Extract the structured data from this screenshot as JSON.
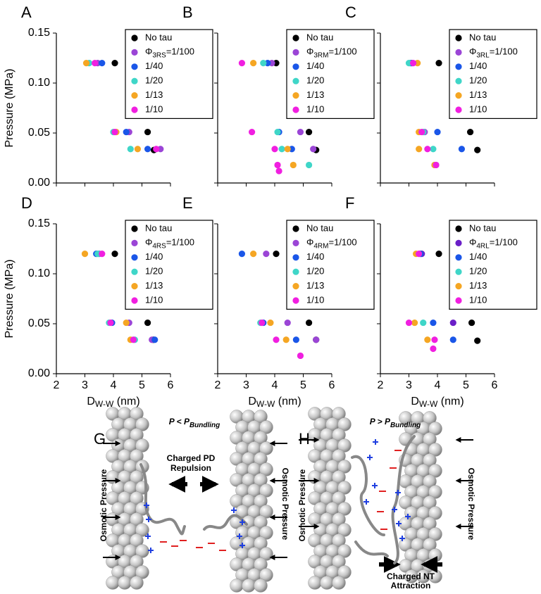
{
  "chart_data": [
    {
      "type": "scatter",
      "panel": "A",
      "ylabel": "Pressure (MPa)",
      "xlim": [
        2,
        6
      ],
      "ylim": [
        0,
        0.15
      ],
      "xticks": [
        2,
        3,
        4,
        5,
        6
      ],
      "xtick_labels": false,
      "yticks": [
        {
          "value": 0,
          "label": "0.00"
        },
        {
          "value": 0.05,
          "label": "0.05"
        },
        {
          "value": 0.1,
          "label": "0.10"
        },
        {
          "value": 0.15,
          "label": "0.15"
        }
      ],
      "ytick_labels": true,
      "legend": "upper right",
      "series": [
        {
          "name": "No tau",
          "color": "#000000",
          "x": [
            4.05,
            5.2,
            5.42
          ],
          "values": [
            0.12,
            0.051,
            0.033
          ]
        },
        {
          "name": "Φ3RS=1/100",
          "color": "#9b45d6",
          "x": [
            3.45,
            4.55,
            5.65
          ],
          "values": [
            0.12,
            0.051,
            0.034
          ]
        },
        {
          "name": "1/40",
          "color": "#1a56e8",
          "x": [
            3.6,
            4.45,
            5.2
          ],
          "values": [
            0.12,
            0.051,
            0.034
          ]
        },
        {
          "name": "1/20",
          "color": "#3fd6c8",
          "x": [
            3.15,
            4.0,
            4.6
          ],
          "values": [
            0.12,
            0.051,
            0.034
          ]
        },
        {
          "name": "1/13",
          "color": "#f5a623",
          "x": [
            3.05,
            4.1,
            4.85
          ],
          "values": [
            0.12,
            0.051,
            0.034
          ]
        },
        {
          "name": "1/10",
          "color": "#f01fe0",
          "x": [
            3.35,
            4.05,
            5.5
          ],
          "values": [
            0.12,
            0.051,
            0.034
          ]
        }
      ]
    },
    {
      "type": "scatter",
      "panel": "B",
      "xlim": [
        2,
        6
      ],
      "ylim": [
        0,
        0.15
      ],
      "xticks": [
        2,
        3,
        4,
        5,
        6
      ],
      "xtick_labels": false,
      "yticks": [
        0,
        0.05,
        0.1,
        0.15
      ],
      "ytick_labels": false,
      "legend": "upper right",
      "series": [
        {
          "name": "No tau",
          "color": "#000000",
          "x": [
            4.05,
            5.2,
            5.45
          ],
          "values": [
            0.12,
            0.051,
            0.033
          ]
        },
        {
          "name": "Φ3RM=1/100",
          "color": "#9b45d6",
          "x": [
            3.9,
            4.9,
            5.35
          ],
          "values": [
            0.12,
            0.051,
            0.034
          ]
        },
        {
          "name": "1/40",
          "color": "#1a56e8",
          "x": [
            3.75,
            4.15,
            4.6
          ],
          "values": [
            0.12,
            0.051,
            0.034
          ]
        },
        {
          "name": "1/20",
          "color": "#3fd6c8",
          "x": [
            3.6,
            4.1,
            4.25,
            5.2
          ],
          "values": [
            0.12,
            0.051,
            0.034,
            0.018
          ]
        },
        {
          "name": "1/13",
          "color": "#f5a623",
          "x": [
            3.25,
            4.45,
            4.65
          ],
          "values": [
            0.12,
            0.034,
            0.018
          ]
        },
        {
          "name": "1/10",
          "color": "#f01fe0",
          "x": [
            2.85,
            3.2,
            4.0,
            4.1,
            4.15
          ],
          "values": [
            0.12,
            0.051,
            0.034,
            0.018,
            0.012
          ]
        }
      ]
    },
    {
      "type": "scatter",
      "panel": "C",
      "xlim": [
        2,
        6
      ],
      "ylim": [
        0,
        0.15
      ],
      "xticks": [
        2,
        3,
        4,
        5,
        6
      ],
      "xtick_labels": false,
      "yticks": [
        0,
        0.05,
        0.1,
        0.15
      ],
      "ytick_labels": false,
      "legend": "upper right",
      "series": [
        {
          "name": "No tau",
          "color": "#000000",
          "x": [
            4.05,
            5.15,
            5.4
          ],
          "values": [
            0.12,
            0.051,
            0.033
          ]
        },
        {
          "name": "Φ3RL=1/100",
          "color": "#9b45d6",
          "x": [
            3.05,
            3.55,
            3.95
          ],
          "values": [
            0.12,
            0.051,
            0.018
          ]
        },
        {
          "name": "1/40",
          "color": "#1a56e8",
          "x": [
            3.1,
            4.0,
            4.85
          ],
          "values": [
            0.12,
            0.051,
            0.034
          ]
        },
        {
          "name": "1/20",
          "color": "#3fd6c8",
          "x": [
            3.0,
            3.5,
            3.85,
            3.9
          ],
          "values": [
            0.12,
            0.051,
            0.034,
            0.018
          ]
        },
        {
          "name": "1/13",
          "color": "#f5a623",
          "x": [
            3.3,
            3.35,
            3.35,
            3.9
          ],
          "values": [
            0.12,
            0.051,
            0.034,
            0.018
          ]
        },
        {
          "name": "1/10",
          "color": "#f01fe0",
          "x": [
            3.15,
            3.45,
            3.65,
            3.95
          ],
          "values": [
            0.12,
            0.051,
            0.034,
            0.018
          ]
        }
      ]
    },
    {
      "type": "scatter",
      "panel": "D",
      "ylabel": "Pressure (MPa)",
      "xlabel": "DW-W (nm)",
      "xlim": [
        2,
        6
      ],
      "ylim": [
        0,
        0.15
      ],
      "xticks": [
        2,
        3,
        4,
        5,
        6
      ],
      "xtick_labels": true,
      "yticks": [
        {
          "value": 0,
          "label": "0.00"
        },
        {
          "value": 0.05,
          "label": "0.05"
        },
        {
          "value": 0.1,
          "label": "0.10"
        },
        {
          "value": 0.15,
          "label": "0.15"
        }
      ],
      "ytick_labels": true,
      "legend": "upper right",
      "series": [
        {
          "name": "No tau",
          "color": "#000000",
          "x": [
            4.05,
            5.2,
            5.4
          ],
          "values": [
            0.12,
            0.051,
            0.034
          ]
        },
        {
          "name": "Φ4RS=1/100",
          "color": "#9b45d6",
          "x": [
            3.5,
            4.55,
            5.35
          ],
          "values": [
            0.12,
            0.051,
            0.034
          ]
        },
        {
          "name": "1/40",
          "color": "#1a56e8",
          "x": [
            3.4,
            3.95,
            5.45
          ],
          "values": [
            0.12,
            0.051,
            0.034
          ]
        },
        {
          "name": "1/20",
          "color": "#3fd6c8",
          "x": [
            3.45,
            3.85,
            4.75
          ],
          "values": [
            0.12,
            0.051,
            0.034
          ]
        },
        {
          "name": "1/13",
          "color": "#f5a623",
          "x": [
            3.0,
            4.45,
            4.6
          ],
          "values": [
            0.12,
            0.051,
            0.034
          ]
        },
        {
          "name": "1/10",
          "color": "#f01fe0",
          "x": [
            3.6,
            3.9,
            4.7
          ],
          "values": [
            0.12,
            0.051,
            0.034
          ]
        }
      ]
    },
    {
      "type": "scatter",
      "panel": "E",
      "xlabel": "DW-W (nm)",
      "xlim": [
        2,
        6
      ],
      "ylim": [
        0,
        0.15
      ],
      "xticks": [
        2,
        3,
        4,
        5,
        6
      ],
      "xtick_labels": true,
      "yticks": [
        0,
        0.05,
        0.1,
        0.15
      ],
      "ytick_labels": false,
      "legend": "upper right",
      "series": [
        {
          "name": "No tau",
          "color": "#000000",
          "x": [
            4.05,
            5.2,
            5.45
          ],
          "values": [
            0.12,
            0.051,
            0.034
          ]
        },
        {
          "name": "Φ4RM=1/100",
          "color": "#9b45d6",
          "x": [
            3.7,
            4.45,
            5.45
          ],
          "values": [
            0.12,
            0.051,
            0.034
          ]
        },
        {
          "name": "1/40",
          "color": "#1a56e8",
          "x": [
            2.85,
            3.6,
            4.75
          ],
          "values": [
            0.12,
            0.051,
            0.034
          ]
        },
        {
          "name": "1/20",
          "color": "#3fd6c8",
          "x": [
            3.5
          ],
          "values": [
            0.051
          ]
        },
        {
          "name": "1/13",
          "color": "#f5a623",
          "x": [
            3.25,
            3.85,
            4.4
          ],
          "values": [
            0.12,
            0.051,
            0.034
          ]
        },
        {
          "name": "1/10",
          "color": "#f01fe0",
          "x": [
            3.55,
            4.05,
            4.9
          ],
          "values": [
            0.051,
            0.034,
            0.018
          ]
        }
      ]
    },
    {
      "type": "scatter",
      "panel": "F",
      "xlabel": "DW-W (nm)",
      "xlim": [
        2,
        6
      ],
      "ylim": [
        0,
        0.15
      ],
      "xticks": [
        2,
        3,
        4,
        5,
        6
      ],
      "xtick_labels": true,
      "yticks": [
        0,
        0.05,
        0.1,
        0.15
      ],
      "ytick_labels": false,
      "legend": "upper right",
      "series": [
        {
          "name": "No tau",
          "color": "#000000",
          "x": [
            4.05,
            5.2,
            5.4
          ],
          "values": [
            0.12,
            0.051,
            0.033
          ]
        },
        {
          "name": "Φ4RL=1/100",
          "color": "#6a1fc8",
          "x": [
            3.45,
            4.55
          ],
          "values": [
            0.12,
            0.051
          ]
        },
        {
          "name": "1/40",
          "color": "#1a56e8",
          "x": [
            3.4,
            3.85,
            4.55
          ],
          "values": [
            0.12,
            0.051,
            0.034
          ]
        },
        {
          "name": "1/20",
          "color": "#3fd6c8",
          "x": [
            3.5
          ],
          "values": [
            0.051
          ]
        },
        {
          "name": "1/13",
          "color": "#f5a623",
          "x": [
            3.25,
            3.2,
            3.65
          ],
          "values": [
            0.12,
            0.051,
            0.034
          ]
        },
        {
          "name": "1/10",
          "color": "#f01fe0",
          "x": [
            3.35,
            3.0,
            3.9,
            3.85
          ],
          "values": [
            0.12,
            0.051,
            0.034,
            0.025
          ]
        }
      ]
    }
  ],
  "diagrams": {
    "G": {
      "panel": "G",
      "title": "P < PBundling",
      "left_label": "Osmotic Pressure",
      "right_label": "Osmotic Pressure",
      "note": [
        "Charged PD",
        "Repulsion"
      ]
    },
    "H": {
      "panel": "H",
      "title": "P > PBundling",
      "left_label": "Osmotic Pressure",
      "right_label": "Osmotic Pressure",
      "note": [
        "Charged NT",
        "Attraction"
      ]
    }
  }
}
